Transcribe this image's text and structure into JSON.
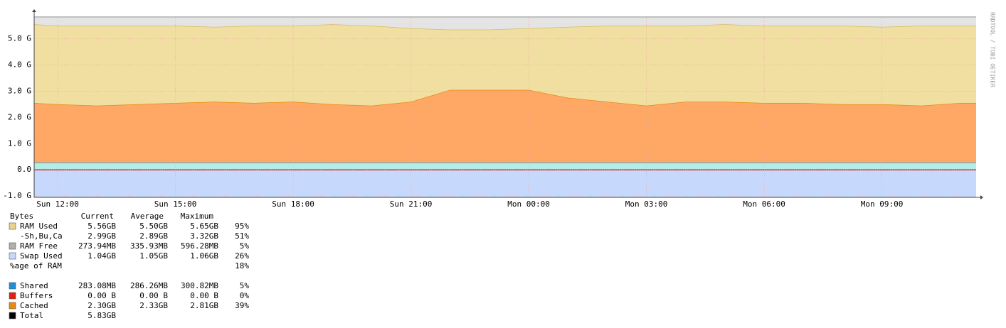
{
  "chart_data": {
    "type": "stacked-area",
    "credit": "RRDTOOL / TOBI OETIKER",
    "x": [
      11.4,
      12,
      13,
      14,
      15,
      16,
      17,
      18,
      19,
      20,
      21,
      22,
      23,
      24,
      25,
      26,
      27,
      28,
      29,
      30,
      31,
      32,
      33,
      34,
      35,
      35.4
    ],
    "xlim": [
      11.4,
      35.4
    ],
    "xticks": [
      {
        "value": 12,
        "label": "Sun 12:00"
      },
      {
        "value": 15,
        "label": "Sun 15:00"
      },
      {
        "value": 18,
        "label": "Sun 18:00"
      },
      {
        "value": 21,
        "label": "Sun 21:00"
      },
      {
        "value": 24,
        "label": "Mon 00:00"
      },
      {
        "value": 27,
        "label": "Mon 03:00"
      },
      {
        "value": 30,
        "label": "Mon 06:00"
      },
      {
        "value": 33,
        "label": "Mon 09:00"
      }
    ],
    "ylim": [
      -1.05,
      5.8
    ],
    "yticks": [
      {
        "value": -1,
        "label": "-1.0 G"
      },
      {
        "value": 0,
        "label": "0.0"
      },
      {
        "value": 1,
        "label": "1.0 G"
      },
      {
        "value": 2,
        "label": "2.0 G"
      },
      {
        "value": 3,
        "label": "3.0 G"
      },
      {
        "value": 4,
        "label": "4.0 G"
      },
      {
        "value": 5,
        "label": "5.0 G"
      }
    ],
    "grid": true,
    "legend_header": [
      "Bytes",
      "Current",
      "Average",
      "Maximum"
    ],
    "series": [
      {
        "name": "Swap Used",
        "color": "#c6d9fd",
        "fill": "#c6d9fd",
        "legend_square": true,
        "values": [
          -1.04,
          -1.04,
          -1.04,
          -1.04,
          -1.04,
          -1.04,
          -1.04,
          -1.04,
          -1.04,
          -1.04,
          -1.04,
          -1.04,
          -1.04,
          -1.04,
          -1.04,
          -1.04,
          -1.04,
          -1.04,
          -1.04,
          -1.04,
          -1.04,
          -1.04,
          -1.04,
          -1.04,
          -1.04,
          -1.04
        ],
        "stats": {
          "current": "1.04GB",
          "average": "1.05GB",
          "maximum": "1.06GB",
          "percent": "26%"
        }
      },
      {
        "name": "Shared",
        "color": "#1f8fd8",
        "fill": "#b4ece6",
        "legend_square": true,
        "values": [
          0.28,
          0.28,
          0.28,
          0.28,
          0.28,
          0.28,
          0.28,
          0.28,
          0.28,
          0.28,
          0.28,
          0.28,
          0.28,
          0.28,
          0.28,
          0.28,
          0.28,
          0.28,
          0.28,
          0.28,
          0.28,
          0.28,
          0.28,
          0.28,
          0.28,
          0.28
        ],
        "stats": {
          "current": "283.08MB",
          "average": "286.26MB",
          "maximum": "300.82MB",
          "percent": "5%"
        }
      },
      {
        "name": "Buffers",
        "color": "#e02010",
        "fill": "#e02010",
        "legend_square": true,
        "values": [
          0,
          0,
          0,
          0,
          0,
          0,
          0,
          0,
          0,
          0,
          0,
          0,
          0,
          0,
          0,
          0,
          0,
          0,
          0,
          0,
          0,
          0,
          0,
          0,
          0,
          0
        ],
        "stats": {
          "current": "0.00 B",
          "average": "0.00 B",
          "maximum": "0.00 B",
          "percent": "0%"
        }
      },
      {
        "name": "Cached",
        "color": "#e88a10",
        "fill": "#ffa866",
        "legend_square": true,
        "values": [
          2.27,
          2.22,
          2.17,
          2.22,
          2.27,
          2.32,
          2.27,
          2.32,
          2.22,
          2.17,
          2.32,
          2.77,
          2.77,
          2.77,
          2.47,
          2.32,
          2.17,
          2.32,
          2.32,
          2.27,
          2.27,
          2.22,
          2.22,
          2.17,
          2.27,
          2.27
        ],
        "stats": {
          "current": "2.30GB",
          "average": "2.33GB",
          "maximum": "2.81GB",
          "percent": "39%"
        }
      },
      {
        "name": "-Sh,Bu,Ca",
        "color": "#d8bc5c",
        "fill": "#f0dfa0",
        "legend_square": false,
        "values": [
          3.0,
          3.0,
          3.05,
          3.0,
          2.95,
          2.85,
          2.95,
          2.9,
          3.05,
          3.05,
          2.8,
          2.3,
          2.3,
          2.35,
          2.7,
          2.9,
          3.05,
          2.9,
          2.95,
          2.95,
          2.95,
          3.0,
          2.95,
          3.05,
          2.95,
          2.95
        ],
        "stats": {
          "current": "2.99GB",
          "average": "2.89GB",
          "maximum": "3.32GB",
          "percent": "51%"
        }
      },
      {
        "name": "RAM Free",
        "color": "#b0b0b0",
        "fill": "#e4e4e4",
        "legend_square": true,
        "values": [
          0.28,
          0.33,
          0.33,
          0.33,
          0.33,
          0.38,
          0.33,
          0.33,
          0.28,
          0.33,
          0.43,
          0.48,
          0.48,
          0.43,
          0.38,
          0.33,
          0.33,
          0.33,
          0.28,
          0.33,
          0.33,
          0.33,
          0.38,
          0.33,
          0.33,
          0.33
        ],
        "stats": {
          "current": "273.94MB",
          "average": "335.93MB",
          "maximum": "596.28MB",
          "percent": "5%"
        }
      }
    ],
    "summary": [
      {
        "label": "RAM Used",
        "color": "#ead28a",
        "current": "5.56GB",
        "average": "5.50GB",
        "maximum": "5.65GB",
        "percent": "95%"
      },
      {
        "label": "%age of RAM",
        "percent": "18%"
      },
      {
        "label": "Total",
        "color": "#000000",
        "current": "5.83GB"
      }
    ]
  }
}
